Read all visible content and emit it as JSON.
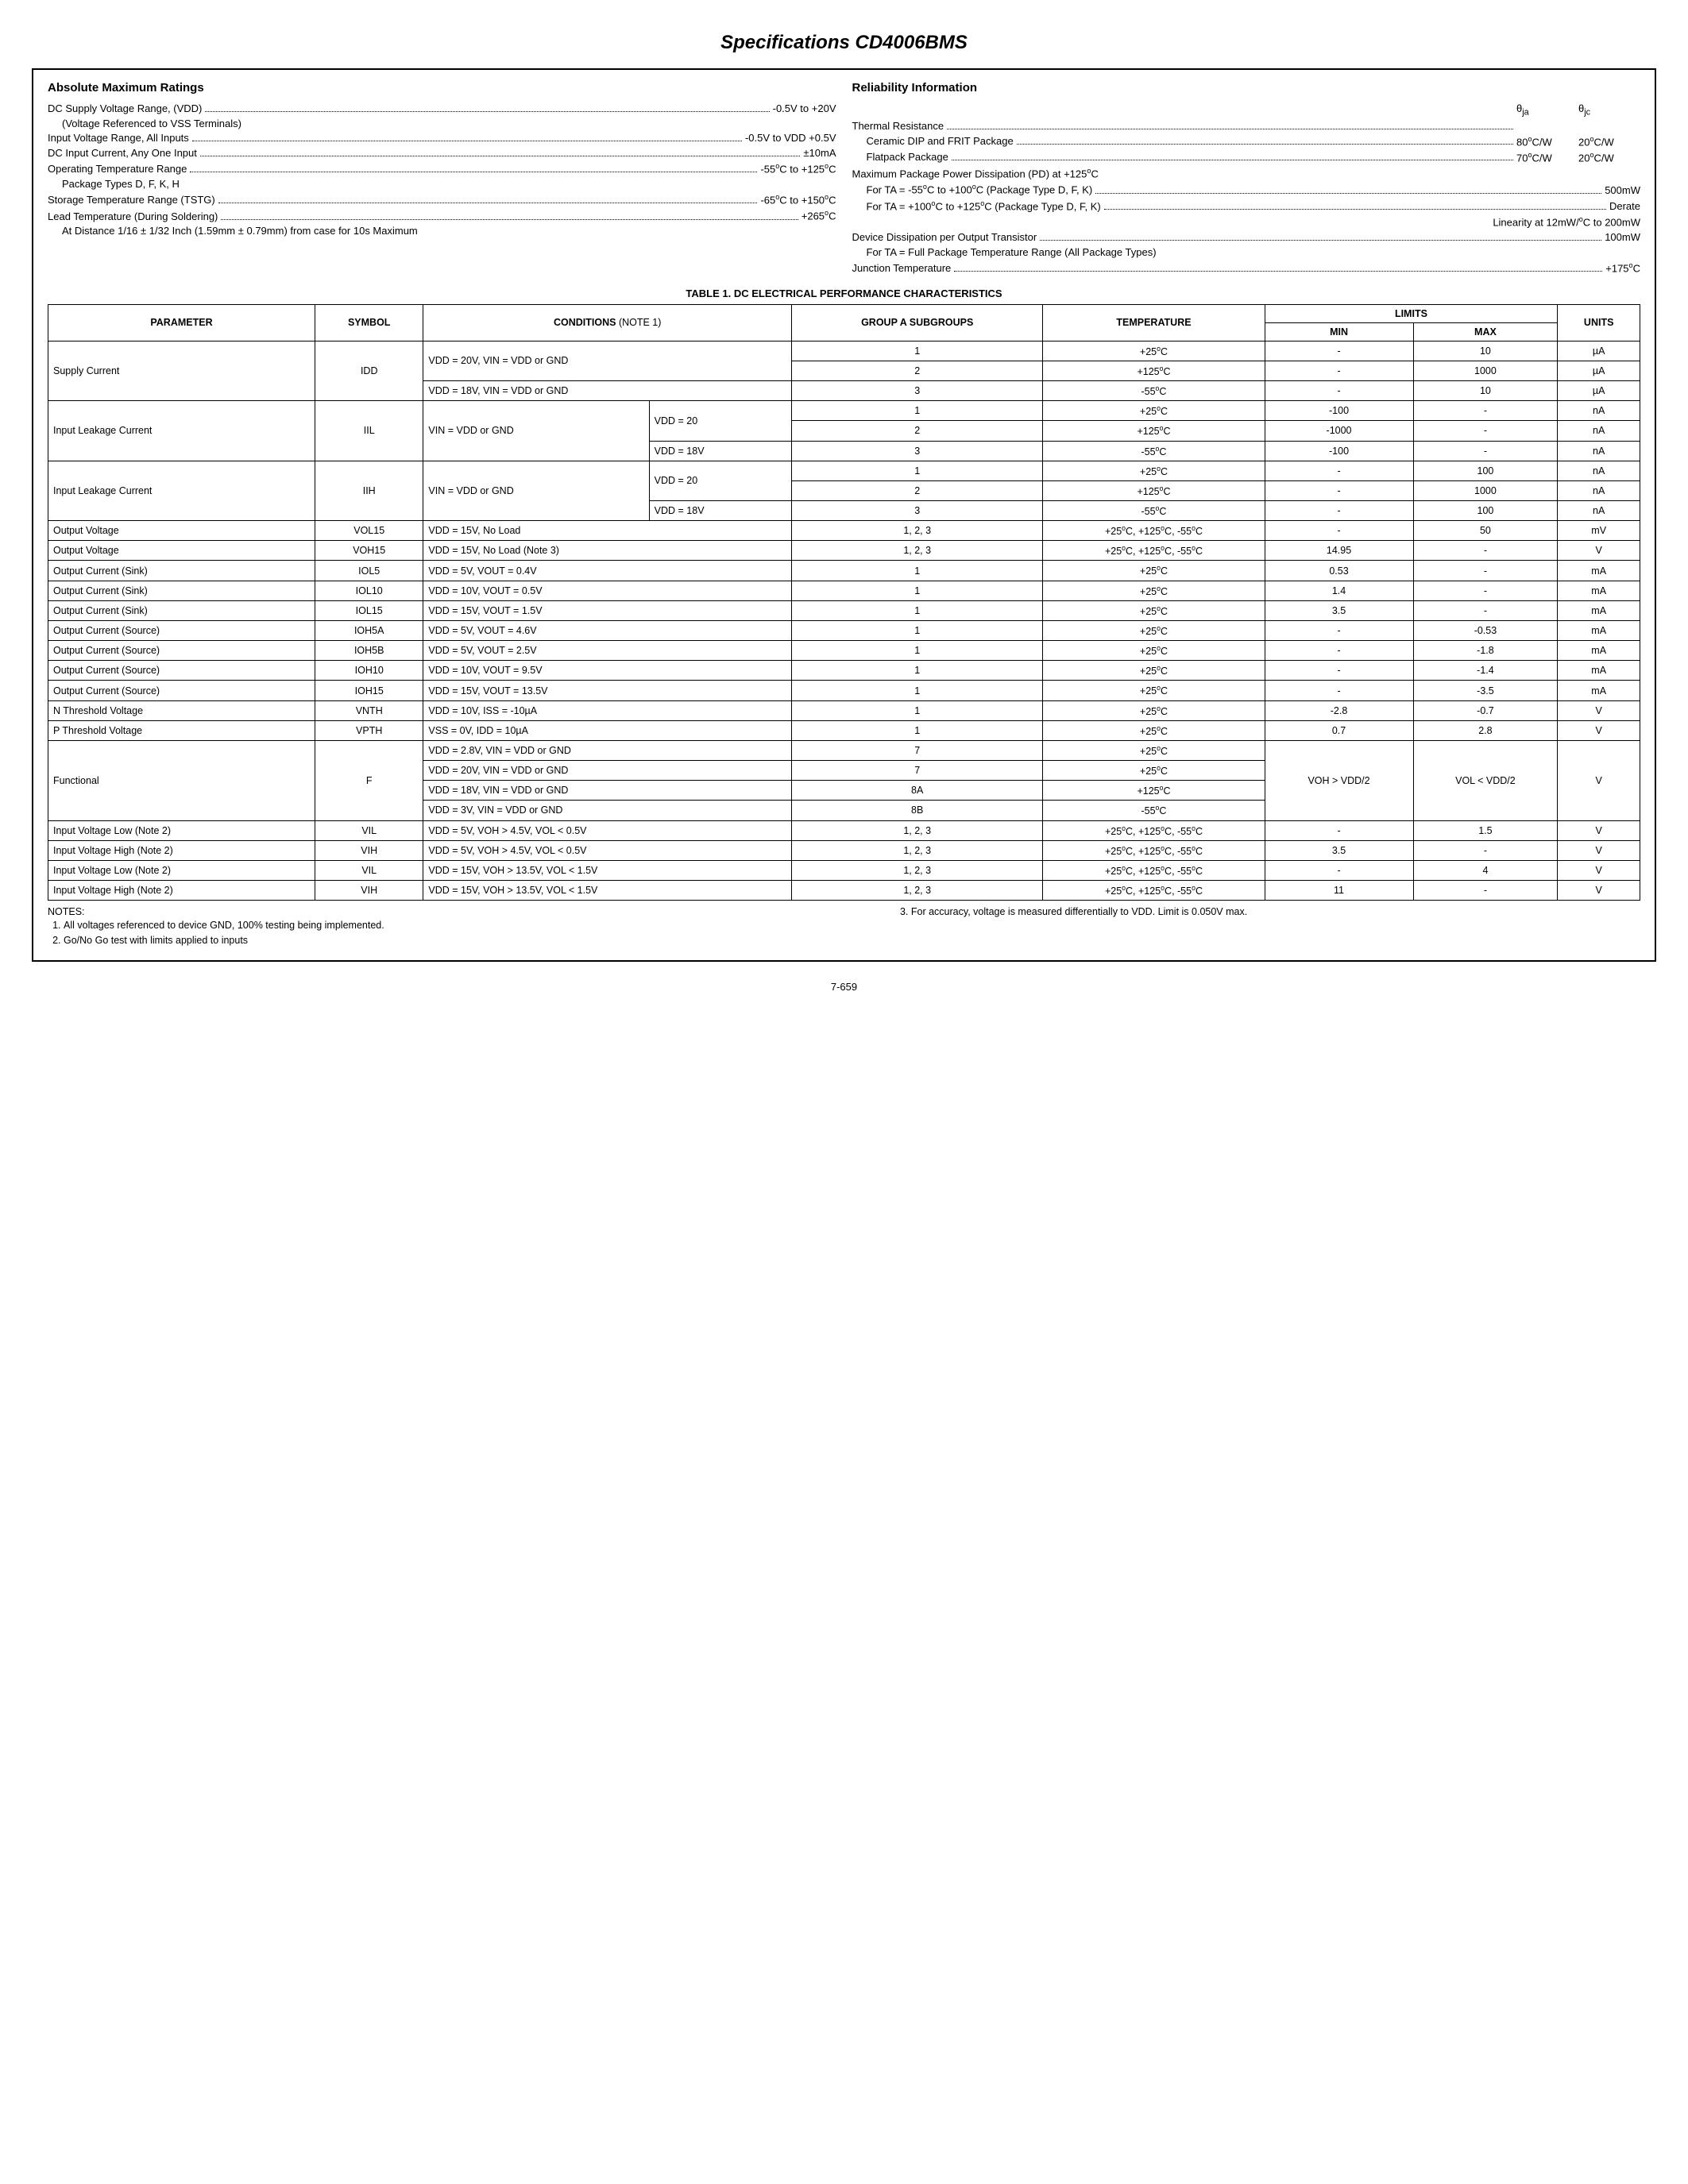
{
  "title": "Specifications CD4006BMS",
  "left": {
    "heading": "Absolute Maximum Ratings",
    "lines": [
      {
        "label": "DC Supply Voltage Range, (VDD)",
        "value": "-0.5V to +20V"
      },
      {
        "label": "(Voltage Referenced to VSS Terminals)",
        "indent": true
      },
      {
        "label": "Input Voltage Range, All Inputs",
        "value": "-0.5V to VDD +0.5V"
      },
      {
        "label": "DC Input Current, Any One Input",
        "value": "±10mA"
      },
      {
        "label": "Operating Temperature Range",
        "value": "-55°C to +125°C"
      },
      {
        "label": "Package Types D, F, K, H",
        "indent": true
      },
      {
        "label": "Storage Temperature Range (TSTG)",
        "value": "-65°C to +150°C"
      },
      {
        "label": "Lead Temperature (During Soldering)",
        "value": "+265°C"
      },
      {
        "label": "At Distance 1/16 ± 1/32 Inch (1.59mm ± 0.79mm) from case for 10s Maximum",
        "indent": true
      }
    ]
  },
  "right": {
    "heading": "Reliability Information",
    "thermal": {
      "head": {
        "c1": "θja",
        "c2": "θjc"
      },
      "rows": [
        {
          "label": "Thermal Resistance",
          "c1": "",
          "c2": ""
        },
        {
          "label": "Ceramic DIP and FRIT Package",
          "c1": "80°C/W",
          "c2": "20°C/W",
          "indent": true
        },
        {
          "label": "Flatpack Package",
          "c1": "70°C/W",
          "c2": "20°C/W",
          "indent": true
        }
      ]
    },
    "lines": [
      {
        "label": "Maximum Package Power Dissipation (PD) at +125°C"
      },
      {
        "label": "For TA = -55°C to +100°C (Package Type D, F, K)",
        "value": "500mW",
        "indent": true
      },
      {
        "label": "For TA = +100°C to +125°C (Package Type D, F, K)",
        "value": "Derate",
        "indent": true
      },
      {
        "label": "Linearity at 12mW/°C to 200mW",
        "right": true
      },
      {
        "label": "Device Dissipation per Output Transistor",
        "value": "100mW"
      },
      {
        "label": "For TA = Full Package Temperature Range (All Package Types)",
        "indent": true
      },
      {
        "label": "Junction Temperature",
        "value": "+175°C"
      }
    ]
  },
  "table_caption": "TABLE 1. DC ELECTRICAL PERFORMANCE CHARACTERISTICS",
  "header": {
    "parameter": "PARAMETER",
    "symbol": "SYMBOL",
    "conditions": "CONDITIONS",
    "condnote": "(NOTE 1)",
    "groupa": "GROUP A SUBGROUPS",
    "temperature": "TEMPERATURE",
    "limits": "LIMITS",
    "min": "MIN",
    "max": "MAX",
    "units": "UNITS"
  },
  "rows": [
    {
      "p": "Supply Current",
      "pr": 3,
      "s": "IDD",
      "sr": 3,
      "c": "VDD = 20V, VIN = VDD or GND",
      "ccs": 2,
      "cr": 2,
      "g": "1",
      "t": "+25°C",
      "min": "-",
      "max": "10",
      "u": "µA"
    },
    {
      "g": "2",
      "t": "+125°C",
      "min": "-",
      "max": "1000",
      "u": "µA"
    },
    {
      "c": "VDD = 18V, VIN = VDD or GND",
      "ccs": 2,
      "g": "3",
      "t": "-55°C",
      "min": "-",
      "max": "10",
      "u": "µA"
    },
    {
      "p": "Input Leakage Current",
      "pr": 3,
      "s": "IIL",
      "sr": 3,
      "c": "VIN = VDD or GND",
      "cr": 3,
      "c2": "VDD = 20",
      "c2r": 2,
      "g": "1",
      "t": "+25°C",
      "min": "-100",
      "max": "-",
      "u": "nA"
    },
    {
      "g": "2",
      "t": "+125°C",
      "min": "-1000",
      "max": "-",
      "u": "nA"
    },
    {
      "c2": "VDD = 18V",
      "g": "3",
      "t": "-55°C",
      "min": "-100",
      "max": "-",
      "u": "nA"
    },
    {
      "p": "Input Leakage Current",
      "pr": 3,
      "s": "IIH",
      "sr": 3,
      "c": "VIN = VDD or GND",
      "cr": 3,
      "c2": "VDD = 20",
      "c2r": 2,
      "g": "1",
      "t": "+25°C",
      "min": "-",
      "max": "100",
      "u": "nA"
    },
    {
      "g": "2",
      "t": "+125°C",
      "min": "-",
      "max": "1000",
      "u": "nA"
    },
    {
      "c2": "VDD = 18V",
      "g": "3",
      "t": "-55°C",
      "min": "-",
      "max": "100",
      "u": "nA"
    },
    {
      "p": "Output Voltage",
      "s": "VOL15",
      "c": "VDD = 15V, No Load",
      "ccs": 2,
      "g": "1, 2, 3",
      "t": "+25°C, +125°C, -55°C",
      "min": "-",
      "max": "50",
      "u": "mV"
    },
    {
      "p": "Output Voltage",
      "s": "VOH15",
      "c": "VDD = 15V, No Load (Note 3)",
      "ccs": 2,
      "g": "1, 2, 3",
      "t": "+25°C, +125°C, -55°C",
      "min": "14.95",
      "max": "-",
      "u": "V"
    },
    {
      "p": "Output Current (Sink)",
      "s": "IOL5",
      "c": "VDD = 5V, VOUT = 0.4V",
      "ccs": 2,
      "g": "1",
      "t": "+25°C",
      "min": "0.53",
      "max": "-",
      "u": "mA"
    },
    {
      "p": "Output Current (Sink)",
      "s": "IOL10",
      "c": "VDD = 10V, VOUT = 0.5V",
      "ccs": 2,
      "g": "1",
      "t": "+25°C",
      "min": "1.4",
      "max": "-",
      "u": "mA"
    },
    {
      "p": "Output Current (Sink)",
      "s": "IOL15",
      "c": "VDD = 15V, VOUT = 1.5V",
      "ccs": 2,
      "g": "1",
      "t": "+25°C",
      "min": "3.5",
      "max": "-",
      "u": "mA"
    },
    {
      "p": "Output Current (Source)",
      "s": "IOH5A",
      "c": "VDD = 5V, VOUT = 4.6V",
      "ccs": 2,
      "g": "1",
      "t": "+25°C",
      "min": "-",
      "max": "-0.53",
      "u": "mA"
    },
    {
      "p": "Output Current (Source)",
      "s": "IOH5B",
      "c": "VDD = 5V, VOUT = 2.5V",
      "ccs": 2,
      "g": "1",
      "t": "+25°C",
      "min": "-",
      "max": "-1.8",
      "u": "mA"
    },
    {
      "p": "Output Current (Source)",
      "s": "IOH10",
      "c": "VDD = 10V, VOUT = 9.5V",
      "ccs": 2,
      "g": "1",
      "t": "+25°C",
      "min": "-",
      "max": "-1.4",
      "u": "mA"
    },
    {
      "p": "Output Current (Source)",
      "s": "IOH15",
      "c": "VDD = 15V, VOUT = 13.5V",
      "ccs": 2,
      "g": "1",
      "t": "+25°C",
      "min": "-",
      "max": "-3.5",
      "u": "mA"
    },
    {
      "p": "N Threshold Voltage",
      "s": "VNTH",
      "c": "VDD = 10V, ISS = -10µA",
      "ccs": 2,
      "g": "1",
      "t": "+25°C",
      "min": "-2.8",
      "max": "-0.7",
      "u": "V"
    },
    {
      "p": "P Threshold Voltage",
      "s": "VPTH",
      "c": "VSS = 0V, IDD = 10µA",
      "ccs": 2,
      "g": "1",
      "t": "+25°C",
      "min": "0.7",
      "max": "2.8",
      "u": "V"
    },
    {
      "p": "Functional",
      "pr": 4,
      "s": "F",
      "sr": 4,
      "c": "VDD = 2.8V, VIN = VDD or GND",
      "ccs": 2,
      "g": "7",
      "t": "+25°C",
      "min": "VOH > VDD/2",
      "minr": 4,
      "max": "VOL < VDD/2",
      "maxr": 4,
      "u": "V",
      "ur": 4
    },
    {
      "c": "VDD = 20V, VIN = VDD or GND",
      "ccs": 2,
      "g": "7",
      "t": "+25°C"
    },
    {
      "c": "VDD = 18V, VIN = VDD or GND",
      "ccs": 2,
      "g": "8A",
      "t": "+125°C"
    },
    {
      "c": "VDD = 3V, VIN = VDD or GND",
      "ccs": 2,
      "g": "8B",
      "t": "-55°C"
    },
    {
      "p": "Input Voltage Low (Note 2)",
      "s": "VIL",
      "c": "VDD = 5V, VOH > 4.5V, VOL < 0.5V",
      "ccs": 2,
      "g": "1, 2, 3",
      "t": "+25°C, +125°C, -55°C",
      "min": "-",
      "max": "1.5",
      "u": "V"
    },
    {
      "p": "Input Voltage High (Note 2)",
      "s": "VIH",
      "c": "VDD = 5V, VOH > 4.5V, VOL < 0.5V",
      "ccs": 2,
      "g": "1, 2, 3",
      "t": "+25°C, +125°C, -55°C",
      "min": "3.5",
      "max": "-",
      "u": "V"
    },
    {
      "p": "Input Voltage Low (Note 2)",
      "s": "VIL",
      "c": "VDD = 15V, VOH > 13.5V, VOL < 1.5V",
      "ccs": 2,
      "g": "1, 2, 3",
      "t": "+25°C, +125°C, -55°C",
      "min": "-",
      "max": "4",
      "u": "V"
    },
    {
      "p": "Input Voltage High (Note 2)",
      "s": "VIH",
      "c": "VDD = 15V, VOH > 13.5V, VOL < 1.5V",
      "ccs": 2,
      "g": "1, 2, 3",
      "t": "+25°C, +125°C, -55°C",
      "min": "11",
      "max": "-",
      "u": "V"
    }
  ],
  "notes": {
    "prefix": "NOTES:",
    "left": [
      "All voltages referenced to device GND, 100% testing being implemented.",
      "Go/No Go test with limits applied to inputs"
    ],
    "right": [
      "For accuracy, voltage is measured differentially to VDD. Limit is 0.050V max."
    ]
  },
  "page_num": "7-659"
}
